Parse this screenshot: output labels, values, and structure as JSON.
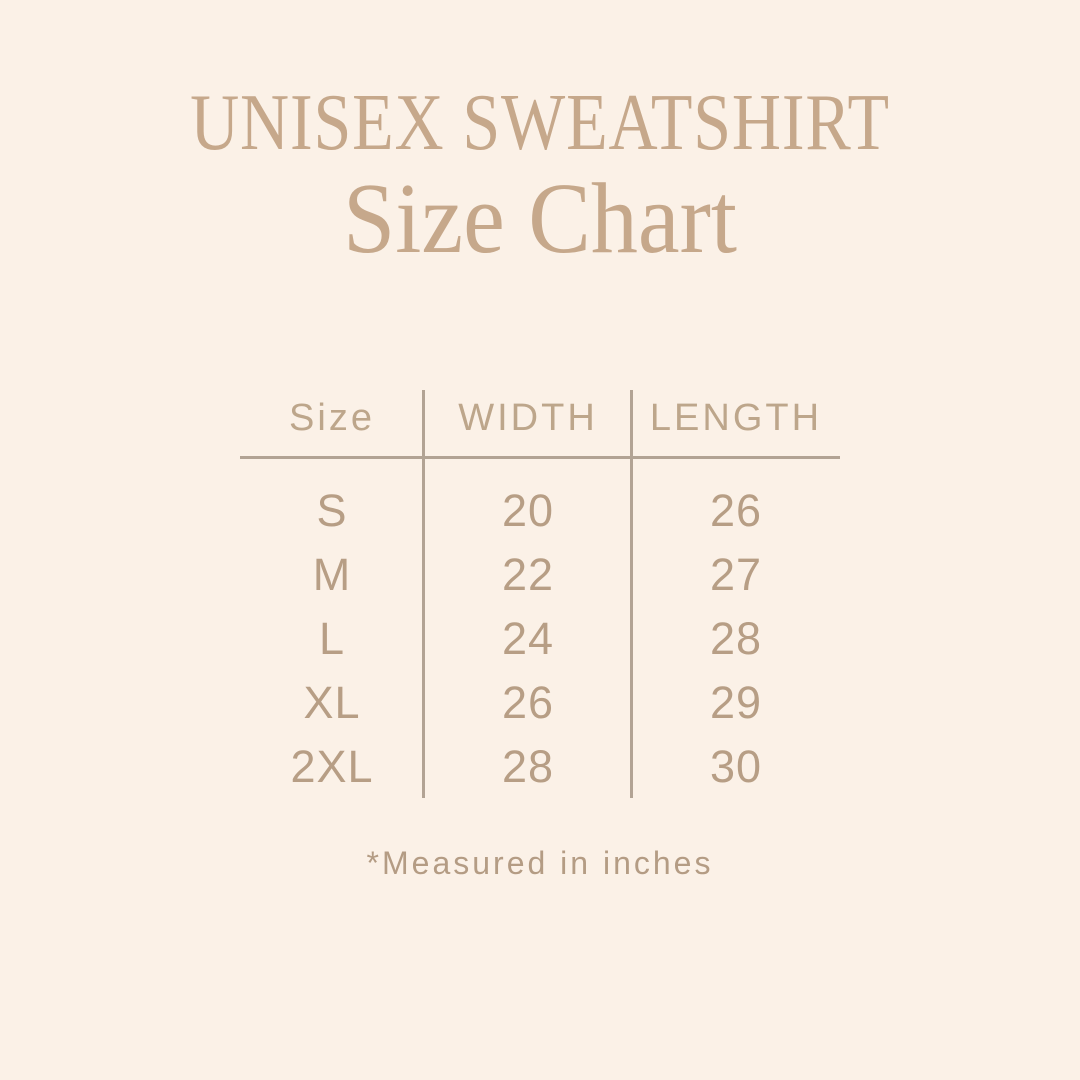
{
  "header": {
    "eyebrow": "UNISEX SWEATSHIRT",
    "title": "Size Chart"
  },
  "chart_data": {
    "type": "table",
    "title": "Size Chart",
    "subtitle": "UNISEX SWEATSHIRT",
    "columns": [
      "Size",
      "WIDTH",
      "LENGTH"
    ],
    "rows": [
      {
        "size": "S",
        "width": "20",
        "length": "26"
      },
      {
        "size": "M",
        "width": "22",
        "length": "27"
      },
      {
        "size": "L",
        "width": "24",
        "length": "28"
      },
      {
        "size": "XL",
        "width": "26",
        "length": "29"
      },
      {
        "size": "2XL",
        "width": "28",
        "length": "30"
      }
    ],
    "units_note": "*Measured in inches"
  },
  "footnote": "*Measured in inches",
  "colors": {
    "background": "#fbf1e7",
    "title_accent": "#c6a88b",
    "table_text": "#b79e85",
    "header_text": "#bda68b",
    "divider_line": "#b2a394"
  }
}
